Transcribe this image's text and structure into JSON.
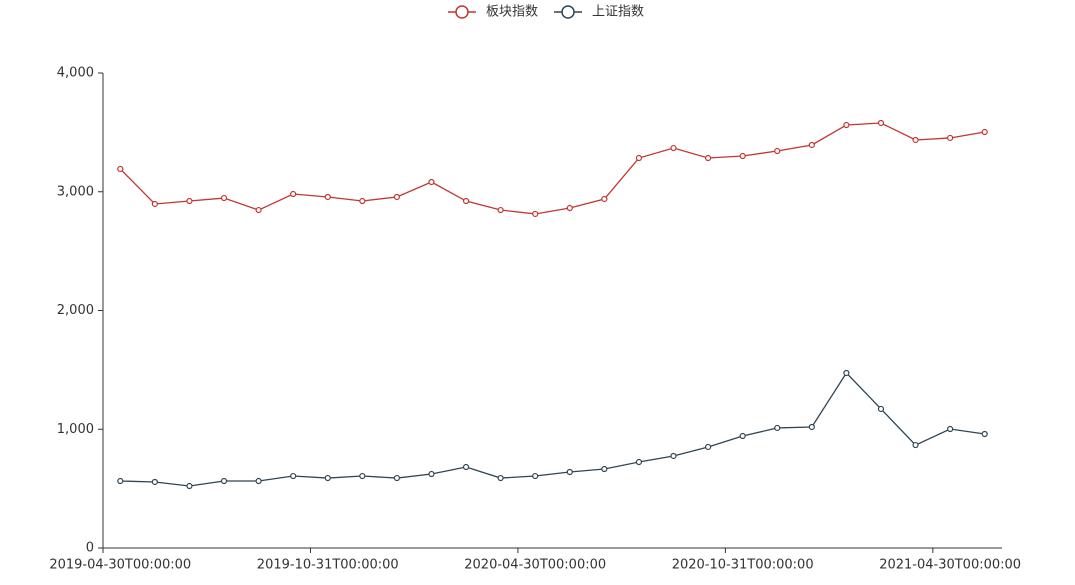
{
  "chart_data": {
    "type": "line",
    "categories": [
      "2019-04-30T00:00:00",
      null,
      null,
      null,
      null,
      null,
      "2019-10-31T00:00:00",
      null,
      null,
      null,
      null,
      null,
      "2020-04-30T00:00:00",
      null,
      null,
      null,
      null,
      null,
      "2020-10-31T00:00:00",
      null,
      null,
      null,
      null,
      null,
      "2021-04-30T00:00:00",
      null
    ],
    "series": [
      {
        "name": "板块指数",
        "color": "#c23531",
        "values": [
          3192,
          2897,
          2922,
          2947,
          2846,
          2981,
          2956,
          2922,
          2956,
          3082,
          2922,
          2846,
          2813,
          2863,
          2939,
          3284,
          3368,
          3284,
          3301,
          3343,
          3394,
          3562,
          3579,
          3436,
          3453,
          3503
        ]
      },
      {
        "name": "上证指数",
        "color": "#2f4554",
        "values": [
          564,
          556,
          522,
          564,
          564,
          606,
          589,
          606,
          589,
          623,
          682,
          589,
          606,
          640,
          665,
          724,
          775,
          851,
          943,
          1011,
          1019,
          1474,
          1171,
          867,
          1002,
          960
        ]
      }
    ],
    "ylim": [
      0,
      4000
    ],
    "yticks": [
      0,
      {
        "value": 1000,
        "label": "1,000"
      },
      {
        "value": 2000,
        "label": "2,000"
      },
      {
        "value": 3000,
        "label": "3,000"
      },
      {
        "value": 4000,
        "label": "4,000"
      }
    ],
    "grid": false
  }
}
